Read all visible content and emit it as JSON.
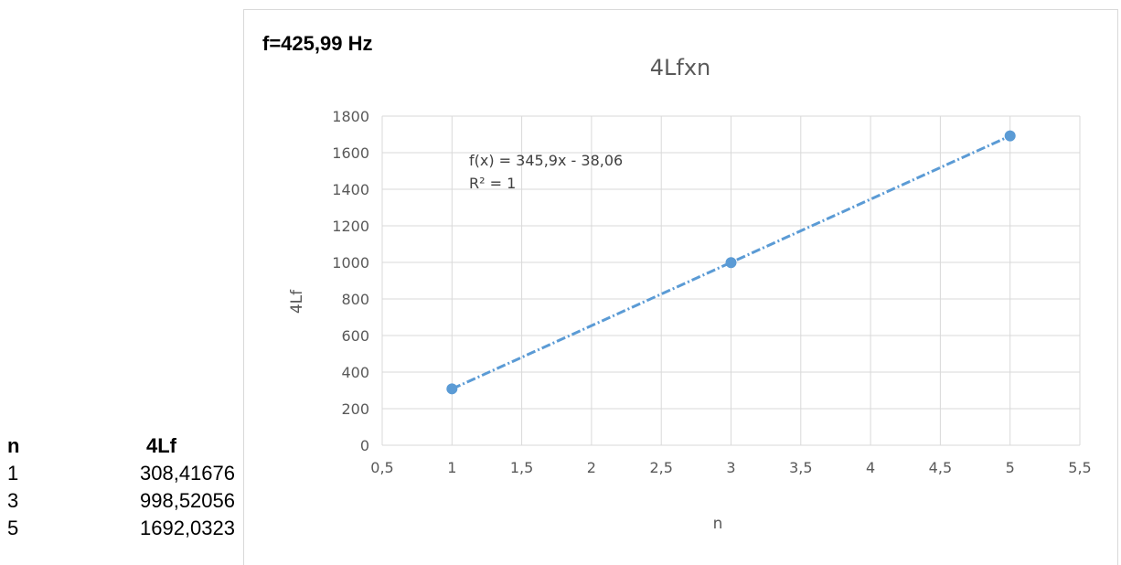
{
  "table": {
    "header_n": "n",
    "header_value": "4Lf",
    "rows": [
      {
        "n": "1",
        "value": "308,41676"
      },
      {
        "n": "3",
        "value": "998,52056"
      },
      {
        "n": "5",
        "value": "1692,0323"
      }
    ]
  },
  "frequency_label": "f=425,99 Hz",
  "chart_data": {
    "type": "scatter",
    "title": "4Lfxn",
    "xlabel": "n",
    "ylabel": "4Lf",
    "xlim": [
      0.5,
      5.5
    ],
    "ylim": [
      0,
      1800
    ],
    "x_ticks": [
      "0,5",
      "1",
      "1,5",
      "2",
      "2,5",
      "3",
      "3,5",
      "4",
      "4,5",
      "5",
      "5,5"
    ],
    "y_ticks": [
      "0",
      "200",
      "400",
      "600",
      "800",
      "1000",
      "1200",
      "1400",
      "1600",
      "1800"
    ],
    "grid": true,
    "series": [
      {
        "x": [
          1,
          3,
          5
        ],
        "y": [
          308.41676,
          998.52056,
          1692.0323
        ],
        "color": "#5b9bd5",
        "marker": "circle"
      }
    ],
    "trendline": {
      "slope": 345.9,
      "intercept": -38.06,
      "style": "dash-dot",
      "color": "#5b9bd5",
      "equation": "f(x) = 345,9x - 38,06",
      "r_squared": "R² = 1"
    }
  }
}
